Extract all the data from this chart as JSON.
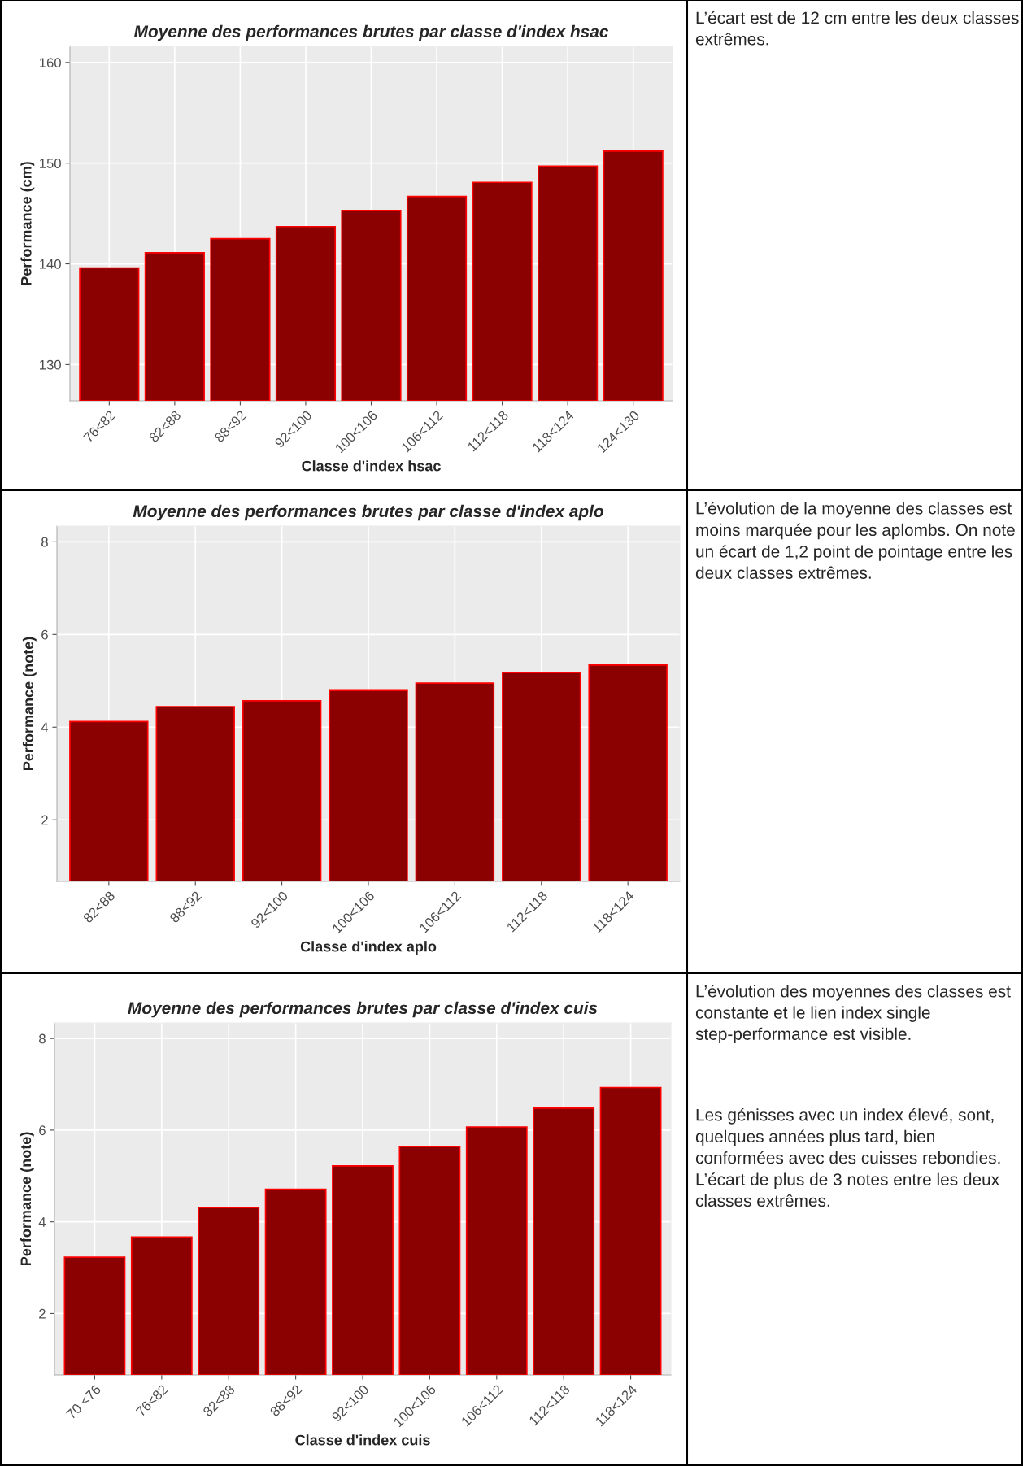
{
  "chart_data": [
    {
      "type": "bar",
      "title": "Moyenne des performances brutes par classe d'index hsac",
      "xlabel": "Classe d'index hsac",
      "ylabel": "Performance (cm)",
      "categories": [
        "76<82",
        "82<88",
        "88<92",
        "92<100",
        "100<106",
        "106<112",
        "112<118",
        "118<124",
        "124<130"
      ],
      "values": [
        139.6,
        141.1,
        142.5,
        143.7,
        145.3,
        146.7,
        148.1,
        149.7,
        151.2
      ],
      "color": "#8b0000",
      "ylim": [
        126.4,
        161.6
      ],
      "yticks": [
        130,
        140,
        150,
        160
      ],
      "grid": true,
      "annotations": [
        "L’écart est de 12 cm entre les deux classes extrêmes."
      ]
    },
    {
      "type": "bar",
      "title": "Moyenne des performances brutes par classe d'index aplo",
      "xlabel": "Classe d'index aplo",
      "ylabel": "Performance (note)",
      "categories": [
        "82<88",
        "88<92",
        "92<100",
        "100<106",
        "106<112",
        "112<118",
        "118<124"
      ],
      "values": [
        4.12,
        4.44,
        4.57,
        4.79,
        4.95,
        5.18,
        5.34
      ],
      "color": "#8b0000",
      "ylim": [
        0.67,
        8.34
      ],
      "yticks": [
        2,
        4,
        6,
        8
      ],
      "grid": true,
      "annotations": [
        "L’évolution de la moyenne des classes est moins marquée pour les aplombs. On note un écart de 1,2 point de pointage entre les deux classes extrêmes."
      ]
    },
    {
      "type": "bar",
      "title": "Moyenne des performances brutes par classe d'index cuis",
      "xlabel": "Classe d'index cuis",
      "ylabel": "Performance (note)",
      "categories": [
        "70 <76",
        "76<82",
        "82<88",
        "88<92",
        "92<100",
        "100<106",
        "106<112",
        "112<118",
        "118<124"
      ],
      "values": [
        3.23,
        3.67,
        4.31,
        4.71,
        5.22,
        5.64,
        6.07,
        6.48,
        6.93
      ],
      "color": "#8b0000",
      "ylim": [
        0.66,
        8.34
      ],
      "yticks": [
        2,
        4,
        6,
        8
      ],
      "grid": true,
      "annotations": [
        "L’évolution des moyennes des classes est constante et le lien index single step-performance est visible.",
        "Les génisses avec un index élevé, sont, quelques années plus tard, bien conformées avec des cuisses rebondies. L’écart de plus de 3 notes entre les deux classes extrêmes."
      ]
    }
  ]
}
